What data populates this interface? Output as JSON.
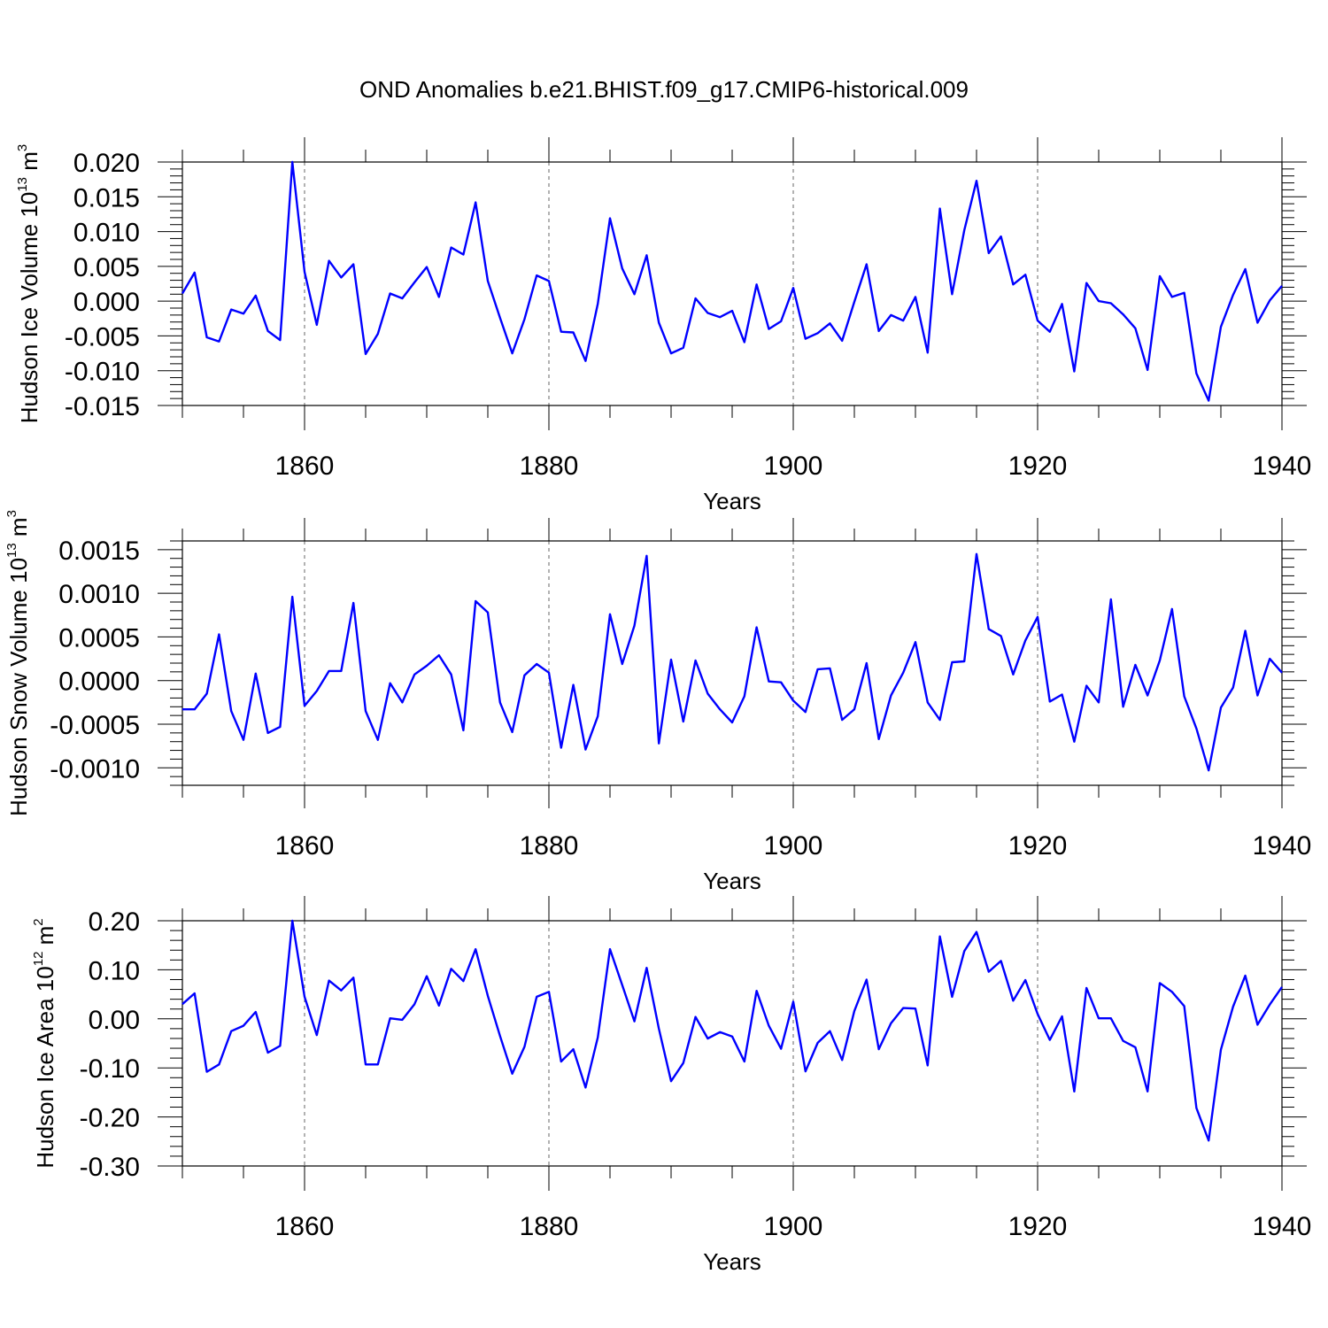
{
  "title": "OND Anomalies b.e21.BHIST.f09_g17.CMIP6-historical.009",
  "chart_data": [
    {
      "type": "line",
      "ylabel_main": "Hudson Ice Volume 10",
      "ylabel_exp": "13",
      "ylabel_unit": " m",
      "ylabel_unit_exp": "3",
      "xlabel": "Years",
      "xlim": [
        1850,
        1940
      ],
      "ylim": [
        -0.015,
        0.02
      ],
      "xticks": [
        1860,
        1880,
        1900,
        1920,
        1940
      ],
      "yticks": [
        -0.015,
        -0.01,
        -0.005,
        0.0,
        0.005,
        0.01,
        0.015,
        0.02
      ],
      "yticklabels": [
        "-0.015",
        "-0.010",
        "-0.005",
        "0.000",
        "0.005",
        "0.010",
        "0.015",
        "0.020"
      ],
      "series": [
        {
          "name": "Hudson Ice Volume",
          "color": "#0000ff",
          "x": [
            1850,
            1851,
            1852,
            1853,
            1854,
            1855,
            1856,
            1857,
            1858,
            1859,
            1860,
            1861,
            1862,
            1863,
            1864,
            1865,
            1866,
            1867,
            1868,
            1869,
            1870,
            1871,
            1872,
            1873,
            1874,
            1875,
            1876,
            1877,
            1878,
            1879,
            1880,
            1881,
            1882,
            1883,
            1884,
            1885,
            1886,
            1887,
            1888,
            1889,
            1890,
            1891,
            1892,
            1893,
            1894,
            1895,
            1896,
            1897,
            1898,
            1899,
            1900,
            1901,
            1902,
            1903,
            1904,
            1905,
            1906,
            1907,
            1908,
            1909,
            1910,
            1911,
            1912,
            1913,
            1914,
            1915,
            1916,
            1917,
            1918,
            1919,
            1920,
            1921,
            1922,
            1923,
            1924,
            1925,
            1926,
            1927,
            1928,
            1929,
            1930,
            1931,
            1932,
            1933,
            1934,
            1935,
            1936,
            1937,
            1938,
            1939,
            1940
          ],
          "values": [
            0.0011,
            0.0041,
            -0.0052,
            -0.0058,
            -0.0012,
            -0.0018,
            0.0008,
            -0.0043,
            -0.0056,
            0.02,
            0.0042,
            -0.0034,
            0.0058,
            0.0034,
            0.0053,
            -0.0076,
            -0.0047,
            0.0011,
            0.0004,
            0.0027,
            0.0049,
            0.0006,
            0.0077,
            0.0067,
            0.0142,
            0.0029,
            -0.0024,
            -0.0075,
            -0.0026,
            0.0037,
            0.0029,
            -0.0044,
            -0.0045,
            -0.0086,
            -0.0004,
            0.0119,
            0.0047,
            0.001,
            0.0066,
            -0.0031,
            -0.0075,
            -0.0067,
            0.0004,
            -0.0017,
            -0.0023,
            -0.0014,
            -0.0059,
            0.0024,
            -0.004,
            -0.0029,
            0.0019,
            -0.0054,
            -0.0046,
            -0.0032,
            -0.0057,
            -0.0001,
            0.0053,
            -0.0043,
            -0.002,
            -0.0028,
            0.0006,
            -0.0074,
            0.0133,
            0.001,
            0.0102,
            0.0173,
            0.0069,
            0.0093,
            0.0024,
            0.0038,
            -0.0028,
            -0.0044,
            -0.0004,
            -0.0101,
            0.0026,
            0.0,
            -0.0003,
            -0.0019,
            -0.0039,
            -0.0099,
            0.0036,
            0.0006,
            0.0012,
            -0.0104,
            -0.0143,
            -0.0037,
            0.0009,
            0.0046,
            -0.0031,
            0.0001,
            0.0022
          ]
        }
      ]
    },
    {
      "type": "line",
      "ylabel_main": "Hudson Snow Volume 10",
      "ylabel_exp": "13",
      "ylabel_unit": " m",
      "ylabel_unit_exp": "3",
      "xlabel": "Years",
      "xlim": [
        1850,
        1940
      ],
      "ylim": [
        -0.0012,
        0.0016
      ],
      "xticks": [
        1860,
        1880,
        1900,
        1920,
        1940
      ],
      "yticks": [
        -0.001,
        -0.0005,
        0.0,
        0.0005,
        0.001,
        0.0015
      ],
      "yticklabels": [
        "-0.0010",
        "-0.0005",
        "0.0000",
        "0.0005",
        "0.0010",
        "0.0015"
      ],
      "series": [
        {
          "name": "Hudson Snow Volume",
          "color": "#0000ff",
          "x": [
            1850,
            1851,
            1852,
            1853,
            1854,
            1855,
            1856,
            1857,
            1858,
            1859,
            1860,
            1861,
            1862,
            1863,
            1864,
            1865,
            1866,
            1867,
            1868,
            1869,
            1870,
            1871,
            1872,
            1873,
            1874,
            1875,
            1876,
            1877,
            1878,
            1879,
            1880,
            1881,
            1882,
            1883,
            1884,
            1885,
            1886,
            1887,
            1888,
            1889,
            1890,
            1891,
            1892,
            1893,
            1894,
            1895,
            1896,
            1897,
            1898,
            1899,
            1900,
            1901,
            1902,
            1903,
            1904,
            1905,
            1906,
            1907,
            1908,
            1909,
            1910,
            1911,
            1912,
            1913,
            1914,
            1915,
            1916,
            1917,
            1918,
            1919,
            1920,
            1921,
            1922,
            1923,
            1924,
            1925,
            1926,
            1927,
            1928,
            1929,
            1930,
            1931,
            1932,
            1933,
            1934,
            1935,
            1936,
            1937,
            1938,
            1939,
            1940
          ],
          "values": [
            -0.00033,
            -0.00033,
            -0.00015,
            0.00053,
            -0.00035,
            -0.00068,
            8e-05,
            -0.0006,
            -0.00053,
            0.00096,
            -0.00029,
            -0.00012,
            0.00011,
            0.00011,
            0.00089,
            -0.00035,
            -0.00068,
            -3e-05,
            -0.00025,
            7e-05,
            0.00017,
            0.00029,
            7e-05,
            -0.00057,
            0.00091,
            0.00078,
            -0.00025,
            -0.00059,
            6e-05,
            0.00019,
            9e-05,
            -0.00077,
            -5e-05,
            -0.00079,
            -0.00041,
            0.00076,
            0.00019,
            0.00063,
            0.00143,
            -0.00072,
            0.00024,
            -0.00047,
            0.00023,
            -0.00015,
            -0.00033,
            -0.00048,
            -0.00018,
            0.00061,
            -1e-05,
            -2e-05,
            -0.00023,
            -0.00036,
            0.00013,
            0.00014,
            -0.00045,
            -0.00033,
            0.0002,
            -0.00067,
            -0.00017,
            9e-05,
            0.00044,
            -0.00025,
            -0.00045,
            0.00021,
            0.00022,
            0.00145,
            0.00059,
            0.00051,
            7e-05,
            0.00046,
            0.00073,
            -0.00024,
            -0.00016,
            -0.0007,
            -6e-05,
            -0.00025,
            0.00093,
            -0.0003,
            0.00018,
            -0.00017,
            0.00023,
            0.00082,
            -0.00018,
            -0.00055,
            -0.00103,
            -0.00031,
            -8e-05,
            0.00057,
            -0.00017,
            0.00025,
            9e-05
          ]
        }
      ]
    },
    {
      "type": "line",
      "ylabel_main": "Hudson Ice Area 10",
      "ylabel_exp": "12",
      "ylabel_unit": " m",
      "ylabel_unit_exp": "2",
      "xlabel": "Years",
      "xlim": [
        1850,
        1940
      ],
      "ylim": [
        -0.3,
        0.2
      ],
      "xticks": [
        1860,
        1880,
        1900,
        1920,
        1940
      ],
      "yticks": [
        -0.3,
        -0.2,
        -0.1,
        0.0,
        0.1,
        0.2
      ],
      "yticklabels": [
        "-0.30",
        "-0.20",
        "-0.10",
        "0.00",
        "0.10",
        "0.20"
      ],
      "series": [
        {
          "name": "Hudson Ice Area",
          "color": "#0000ff",
          "x": [
            1850,
            1851,
            1852,
            1853,
            1854,
            1855,
            1856,
            1857,
            1858,
            1859,
            1860,
            1861,
            1862,
            1863,
            1864,
            1865,
            1866,
            1867,
            1868,
            1869,
            1870,
            1871,
            1872,
            1873,
            1874,
            1875,
            1876,
            1877,
            1878,
            1879,
            1880,
            1881,
            1882,
            1883,
            1884,
            1885,
            1886,
            1887,
            1888,
            1889,
            1890,
            1891,
            1892,
            1893,
            1894,
            1895,
            1896,
            1897,
            1898,
            1899,
            1900,
            1901,
            1902,
            1903,
            1904,
            1905,
            1906,
            1907,
            1908,
            1909,
            1910,
            1911,
            1912,
            1913,
            1914,
            1915,
            1916,
            1917,
            1918,
            1919,
            1920,
            1921,
            1922,
            1923,
            1924,
            1925,
            1926,
            1927,
            1928,
            1929,
            1930,
            1931,
            1932,
            1933,
            1934,
            1935,
            1936,
            1937,
            1938,
            1939,
            1940
          ],
          "values": [
            0.03,
            0.052,
            -0.108,
            -0.093,
            -0.025,
            -0.014,
            0.014,
            -0.069,
            -0.055,
            0.2,
            0.045,
            -0.033,
            0.078,
            0.058,
            0.084,
            -0.093,
            -0.093,
            0.001,
            -0.002,
            0.03,
            0.087,
            0.027,
            0.102,
            0.077,
            0.142,
            0.047,
            -0.035,
            -0.112,
            -0.057,
            0.045,
            0.055,
            -0.087,
            -0.062,
            -0.14,
            -0.038,
            0.142,
            0.069,
            -0.005,
            0.104,
            -0.02,
            -0.127,
            -0.09,
            0.004,
            -0.04,
            -0.027,
            -0.036,
            -0.087,
            0.057,
            -0.014,
            -0.061,
            0.035,
            -0.107,
            -0.049,
            -0.025,
            -0.084,
            0.016,
            0.08,
            -0.062,
            -0.009,
            0.022,
            0.021,
            -0.095,
            0.168,
            0.045,
            0.138,
            0.177,
            0.096,
            0.118,
            0.037,
            0.079,
            0.01,
            -0.043,
            0.005,
            -0.148,
            0.063,
            0.001,
            0.001,
            -0.045,
            -0.058,
            -0.148,
            0.073,
            0.055,
            0.026,
            -0.182,
            -0.248,
            -0.063,
            0.025,
            0.088,
            -0.012,
            0.029,
            0.065
          ]
        }
      ]
    }
  ]
}
